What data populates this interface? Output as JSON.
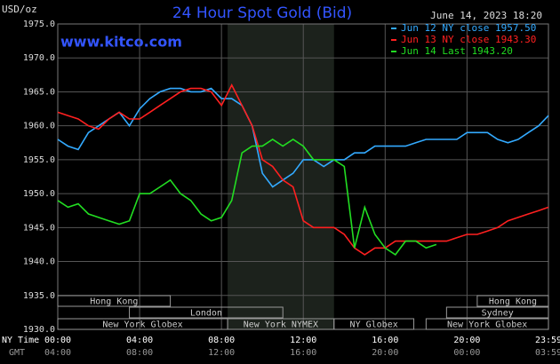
{
  "chart_data": {
    "type": "line",
    "title": "24 Hour Spot Gold (Bid)",
    "y_label": "USD/oz",
    "source": "www.kitco.com",
    "timestamp": "June 14, 2023 18:20",
    "x_label": "NY Time",
    "x2_label": "GMT",
    "x": [
      0,
      0.5,
      1,
      1.5,
      2,
      2.5,
      3,
      3.5,
      4,
      4.5,
      5,
      5.5,
      6,
      6.5,
      7,
      7.5,
      8,
      8.5,
      9,
      9.5,
      10,
      10.5,
      11,
      11.5,
      12,
      12.5,
      13,
      13.5,
      14,
      14.5,
      15,
      15.5,
      16,
      16.5,
      17,
      17.5,
      18,
      18.5,
      19,
      19.5,
      20,
      20.5,
      21,
      21.5,
      22,
      22.5,
      23,
      23.5,
      23.98
    ],
    "xlim": [
      0,
      23.98
    ],
    "xticks": [
      {
        "value": 0,
        "label": "00:00"
      },
      {
        "value": 4,
        "label": "04:00"
      },
      {
        "value": 8,
        "label": "08:00"
      },
      {
        "value": 12,
        "label": "12:00"
      },
      {
        "value": 16,
        "label": "16:00"
      },
      {
        "value": 20,
        "label": "20:00"
      },
      {
        "value": 23.98,
        "label": "23:59"
      }
    ],
    "x2_tick_labels": [
      "04:00",
      "08:00",
      "12:00",
      "16:00",
      "20:00",
      "00:00",
      "03:59"
    ],
    "ylim": [
      1930,
      1975
    ],
    "yticks": [
      {
        "value": 1930,
        "label": "1930.0"
      },
      {
        "value": 1935,
        "label": "1935.0"
      },
      {
        "value": 1940,
        "label": "1940.0"
      },
      {
        "value": 1945,
        "label": "1945.0"
      },
      {
        "value": 1950,
        "label": "1950.0"
      },
      {
        "value": 1955,
        "label": "1955.0"
      },
      {
        "value": 1960,
        "label": "1960.0"
      },
      {
        "value": 1965,
        "label": "1965.0"
      },
      {
        "value": 1970,
        "label": "1970.0"
      },
      {
        "value": 1975,
        "label": "1975.0"
      }
    ],
    "grid": true,
    "series": [
      {
        "name": "Jun 12 NY close 1957.50",
        "color": "#33aaff",
        "values": [
          1958,
          1957,
          1956.5,
          1959,
          1960,
          1961,
          1962,
          1960,
          1962.5,
          1964,
          1965,
          1965.5,
          1965.5,
          1965,
          1965,
          1965.5,
          1964,
          1964,
          1963,
          1960,
          1953,
          1951,
          1952,
          1953,
          1955,
          1955,
          1954,
          1955,
          1955,
          1956,
          1956,
          1957,
          1957,
          1957,
          1957,
          1957.5,
          1958,
          1958,
          1958,
          1958,
          1959,
          1959,
          1959,
          1958,
          1957.5,
          1958,
          1959,
          1960,
          1961.5
        ]
      },
      {
        "name": "Jun 13 NY close 1943.30",
        "color": "#ff2020",
        "values": [
          1962,
          1961.5,
          1961,
          1960,
          1959.5,
          1961,
          1962,
          1961,
          1961,
          1962,
          1963,
          1964,
          1965,
          1965.5,
          1965.5,
          1965,
          1963,
          1966,
          1963,
          1960,
          1955,
          1954,
          1952,
          1951,
          1946,
          1945,
          1945,
          1945,
          1944,
          1942,
          1941,
          1942,
          1942,
          1943,
          1943,
          1943,
          1943,
          1943,
          1943,
          1943.5,
          1944,
          1944,
          1944.5,
          1945,
          1946,
          1946.5,
          1947,
          1947.5,
          1948
        ]
      },
      {
        "name": "Jun 14 Last 1943.20",
        "color": "#22dd22",
        "values": [
          1949,
          1948,
          1948.5,
          1947,
          1946.5,
          1946,
          1945.5,
          1946,
          1950,
          1950,
          1951,
          1952,
          1950,
          1949,
          1947,
          1946,
          1946.5,
          1949,
          1956,
          1957,
          1957,
          1958,
          1957,
          1958,
          1957,
          1955,
          1955,
          1955,
          1954,
          1942,
          1948,
          1944,
          1942,
          1941,
          1943,
          1943,
          1942,
          1942.5,
          null,
          null,
          null,
          null,
          null,
          null,
          null,
          null,
          null,
          null,
          null
        ]
      }
    ],
    "session_rows": [
      [
        {
          "label": "Hong Kong",
          "start": 0,
          "end": 5.5
        },
        {
          "label": "Hong Kong",
          "start": 20.5,
          "end": 23.98
        }
      ],
      [
        {
          "label": "London",
          "start": 3.5,
          "end": 11
        },
        {
          "label": "Sydney",
          "start": 19,
          "end": 23.98
        }
      ],
      [
        {
          "label": "New York Globex",
          "start": 0,
          "end": 8.3
        },
        {
          "label": "New York NYMEX",
          "start": 8.3,
          "end": 13.5,
          "highlight": true
        },
        {
          "label": "NY Globex",
          "start": 13.5,
          "end": 17.4
        },
        {
          "label": "New York Globex",
          "start": 18,
          "end": 23.98
        }
      ]
    ]
  }
}
